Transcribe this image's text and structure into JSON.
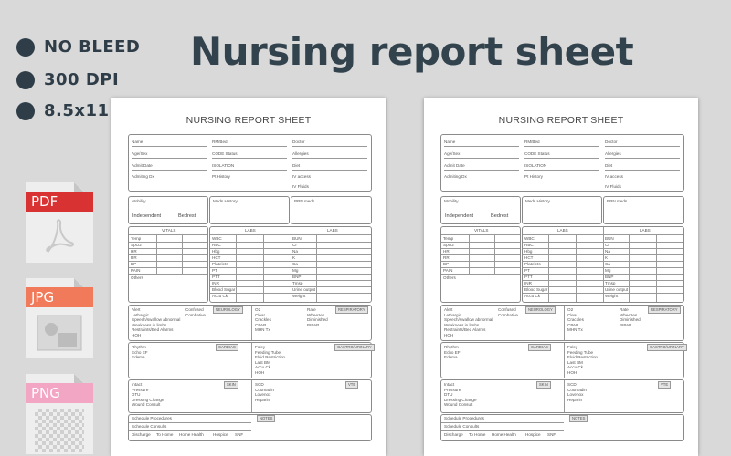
{
  "bullets": [
    "NO  BLEED",
    "300 DPI",
    "8.5x11"
  ],
  "headline": "Nursing report sheet",
  "file_icons": [
    {
      "label": "PDF",
      "color": "#d93232",
      "icon": "acrobat-icon"
    },
    {
      "label": "JPG",
      "color": "#f07a5a",
      "icon": "image-placeholder-icon"
    },
    {
      "label": "PNG",
      "color": "#f2a6c4",
      "icon": "transparency-grid-icon"
    }
  ],
  "sheet": {
    "title": "NURSING REPORT SHEET",
    "patient_fields": [
      "Name",
      "Age/Sex",
      "Admit Date",
      "Admiting Dx"
    ],
    "middle_fields": [
      "RM/Bed",
      "CODE Status",
      "ISOLATION",
      "Pt History"
    ],
    "right_fields": [
      "Doctor",
      "Allergies",
      "Diet",
      "IV access",
      "IV Fluids"
    ],
    "mobility": "Mobility",
    "mobility_options": [
      "Independent",
      "Bedrest"
    ],
    "meds_history": "Meds History",
    "prn_meds": "PRN meds",
    "vitals_header": "VITALS",
    "vitals": [
      "Temp",
      "SpO2",
      "HR",
      "RR",
      "BP",
      "PAIN",
      "Others"
    ],
    "labs_header": "LABS",
    "labs_left": [
      "WBC",
      "RBC",
      "Hbg",
      "HCT",
      "Platelets",
      "PT",
      "PTT",
      "INR",
      "Blood Sugar",
      "Accu Ck"
    ],
    "labs_right": [
      "BUN",
      "Cr",
      "Na",
      "K",
      "Ca",
      "Mg",
      "BNP",
      "Tmsp",
      "Urine output",
      "Weight"
    ],
    "neuro_items": [
      "Alert",
      "Lethargic",
      "Speech/swallow abnormal",
      "Weakness in limbs",
      "Restraints/Bed Alarms",
      "HOH"
    ],
    "neuro_items_2": [
      "Confused",
      "Combative"
    ],
    "neurology": "NEUROLOGY",
    "resp_items": [
      "O2",
      "Clear",
      "Crackles",
      "CPAP",
      "MHN Tx"
    ],
    "resp_items_2": [
      "Rate",
      "Wheezes",
      "Diminished",
      "BIPAP"
    ],
    "respiratory": "RESPIRATORY",
    "cardiac_items": [
      "Rhythm",
      "Echo EF",
      "Edema"
    ],
    "cardiac": "CARDIAC",
    "gi_items": [
      "Foley",
      "Feeding Tube",
      "Fluid Restriction",
      "Last BM",
      "Accu Ck",
      "HOH"
    ],
    "gastro": "GASTRO/URINARY",
    "skin_items": [
      "Intact",
      "Pressure",
      "DTU",
      "Dressing Change",
      "Wound Consult"
    ],
    "skin": "SKIN",
    "vte_items": [
      "SCD",
      "Coumadin",
      "Lovenox",
      "Heparin"
    ],
    "vte": "VTE",
    "schedule_items": [
      "Schedule Procedures",
      "Schedule Consults"
    ],
    "notes": "NOTES",
    "discharge": [
      "Discharge",
      "To Home",
      "Home Health",
      "Hospice",
      "SNF"
    ]
  }
}
